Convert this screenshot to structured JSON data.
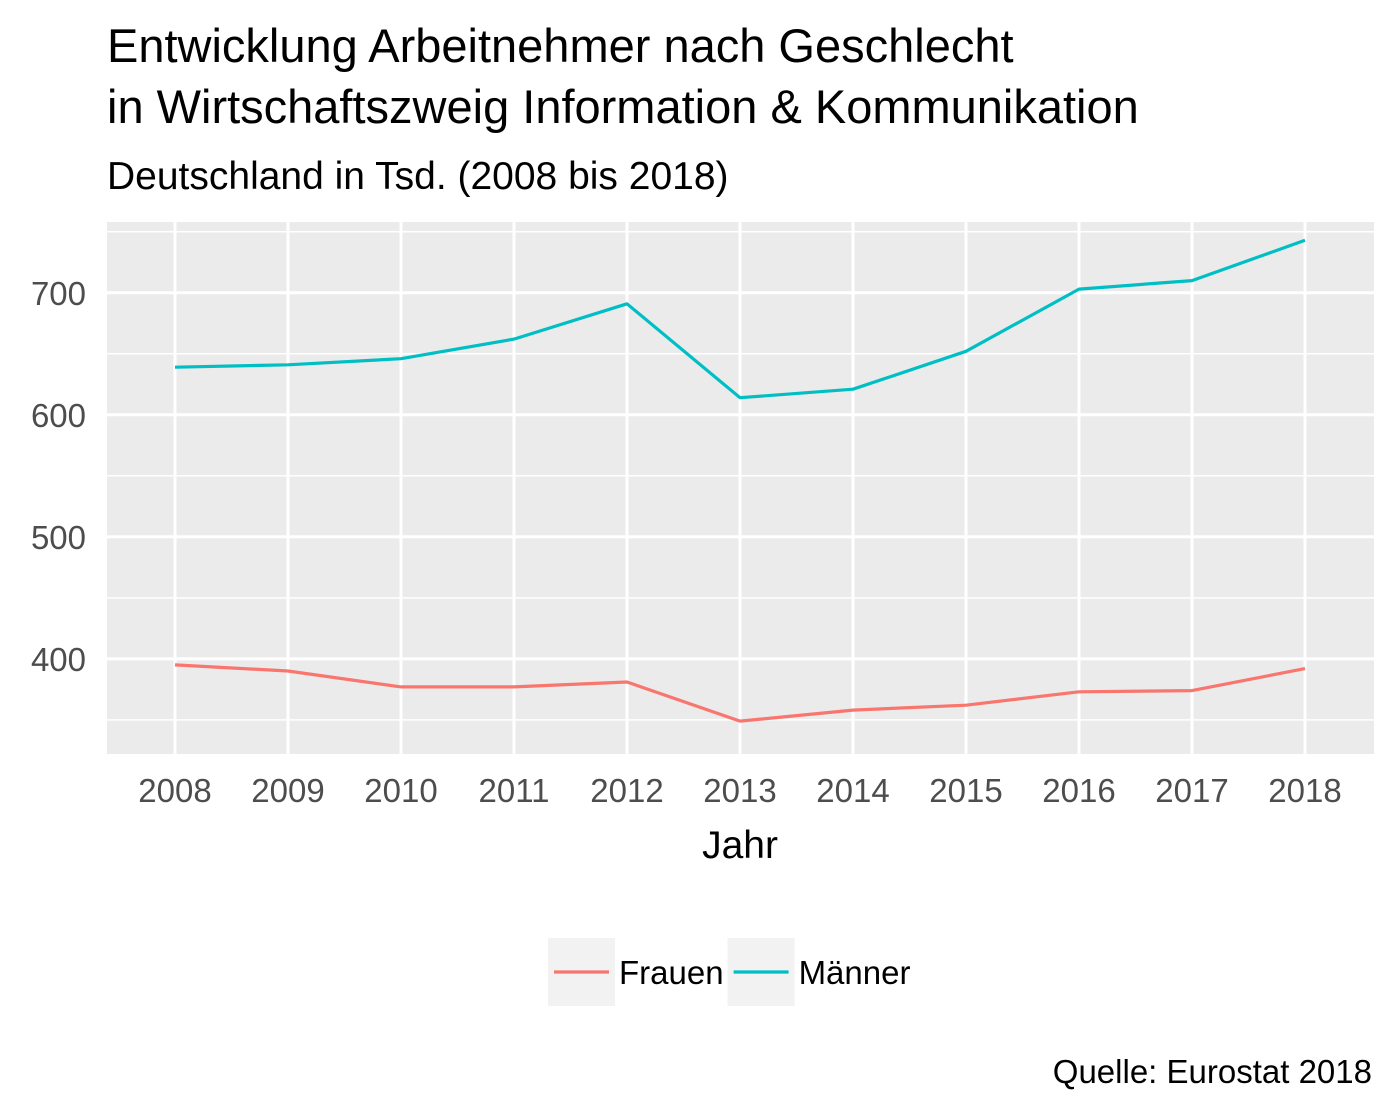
{
  "chart_data": {
    "type": "line",
    "title_line1": "Entwicklung Arbeitnehmer nach Geschlecht",
    "title_line2": "in Wirtschaftszweig Information & Kommunikation",
    "subtitle": "Deutschland in Tsd. (2008 bis 2018)",
    "xlabel": "Jahr",
    "ylabel": "",
    "caption": "Quelle: Eurostat 2018",
    "x": [
      "2008",
      "2009",
      "2010",
      "2011",
      "2012",
      "2013",
      "2014",
      "2015",
      "2016",
      "2017",
      "2018"
    ],
    "yticks": [
      400,
      500,
      600,
      700
    ],
    "ylim": [
      322,
      758
    ],
    "grid": true,
    "legend_position": "bottom",
    "series": [
      {
        "name": "Frauen",
        "color": "#f8766d",
        "values": [
          395,
          390,
          377,
          377,
          381,
          349,
          358,
          362,
          373,
          374,
          392
        ]
      },
      {
        "name": "Männer",
        "color": "#00bfc4",
        "values": [
          639,
          641,
          646,
          662,
          691,
          614,
          621,
          652,
          703,
          710,
          743
        ]
      }
    ]
  }
}
